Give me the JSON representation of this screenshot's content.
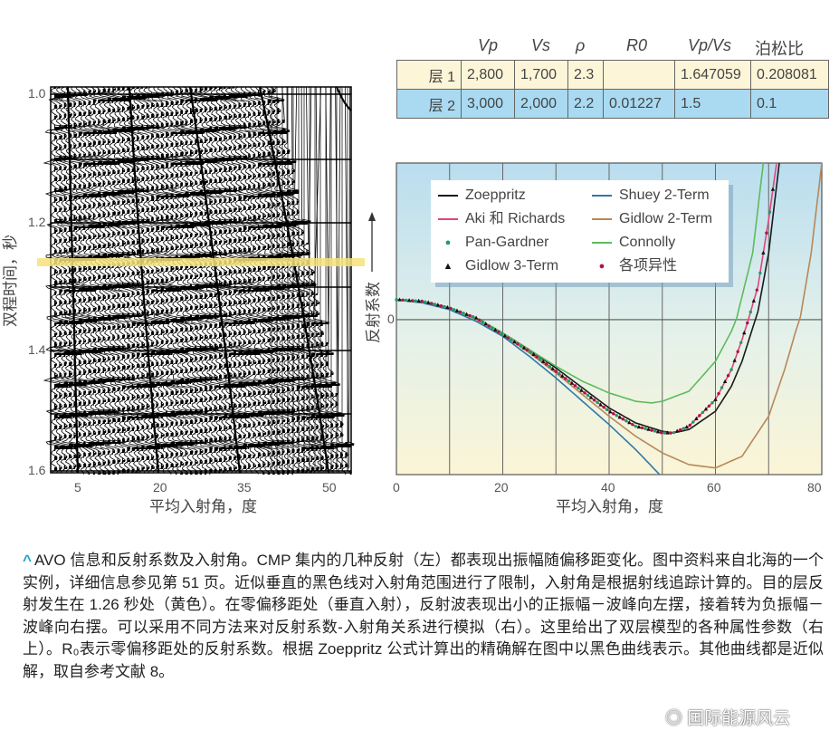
{
  "table": {
    "headers": [
      "Vp",
      "Vs",
      "ρ",
      "R0",
      "Vp/Vs",
      "泊松比"
    ],
    "rows": [
      {
        "label": "层 1",
        "cells": [
          "2,800",
          "1,700",
          "2.3",
          "",
          "1.647059",
          "0.208081"
        ]
      },
      {
        "label": "层 2",
        "cells": [
          "3,000",
          "2,000",
          "2.2",
          "0.01227",
          "1.5",
          "0.1"
        ]
      }
    ],
    "row_colors": [
      "#fdf5d8",
      "#a9daf2"
    ]
  },
  "seismic": {
    "ylabel": "双程时间，秒",
    "xlabel": "平均入射角，度",
    "yticks": [
      "1.0",
      "1.2",
      "1.4",
      "1.6"
    ],
    "xticks": [
      "5",
      "20",
      "35",
      "50"
    ],
    "target_time": 1.26,
    "highlight_color": "#f7e27a"
  },
  "chart_data": {
    "type": "line",
    "xlabel": "平均入射角，度",
    "ylabel": "反射系数",
    "xlim": [
      0,
      80
    ],
    "ylim": [
      -0.093,
      0.094
    ],
    "xticks": [
      "0",
      "20",
      "40",
      "60",
      "80"
    ],
    "ytick_zero": "0",
    "grid": true,
    "legend_position": "top-left",
    "series": [
      {
        "name": "Zoeppritz",
        "color": "#1a1a1a",
        "style": "line",
        "x": [
          0,
          5,
          10,
          15,
          20,
          25,
          30,
          35,
          40,
          45,
          50,
          52,
          55,
          60,
          63,
          65,
          67,
          68,
          70,
          72
        ],
        "y": [
          0.012,
          0.011,
          0.007,
          0.001,
          -0.008,
          -0.018,
          -0.029,
          -0.041,
          -0.053,
          -0.062,
          -0.067,
          -0.068,
          -0.066,
          -0.055,
          -0.04,
          -0.025,
          -0.005,
          0.005,
          0.04,
          0.094
        ]
      },
      {
        "name": "Shuey 2-Term",
        "color": "#2f78a8",
        "style": "line",
        "x": [
          0,
          5,
          10,
          15,
          20,
          25,
          30,
          35,
          40,
          45,
          49.5
        ],
        "y": [
          0.012,
          0.01,
          0.006,
          -0.001,
          -0.01,
          -0.022,
          -0.035,
          -0.049,
          -0.063,
          -0.078,
          -0.093
        ]
      },
      {
        "name": "Aki 和 Richards",
        "color": "#e0457b",
        "style": "line",
        "x": [
          0,
          5,
          10,
          15,
          20,
          25,
          30,
          35,
          40,
          45,
          50,
          52,
          55,
          60,
          63,
          65,
          66,
          68,
          70,
          71.5
        ],
        "y": [
          0.012,
          0.011,
          0.007,
          0.001,
          -0.009,
          -0.019,
          -0.031,
          -0.043,
          -0.055,
          -0.064,
          -0.068,
          -0.068,
          -0.064,
          -0.048,
          -0.03,
          -0.012,
          -0.002,
          0.02,
          0.06,
          0.094
        ]
      },
      {
        "name": "Gidlow 2-Term",
        "color": "#b8875a",
        "style": "line",
        "x": [
          0,
          5,
          10,
          15,
          20,
          25,
          30,
          35,
          40,
          45,
          50,
          55,
          60,
          65,
          70,
          73,
          75,
          76,
          78,
          80
        ],
        "y": [
          0.012,
          0.011,
          0.007,
          0.0,
          -0.009,
          -0.02,
          -0.032,
          -0.045,
          -0.058,
          -0.07,
          -0.08,
          -0.087,
          -0.089,
          -0.082,
          -0.058,
          -0.03,
          -0.008,
          0.002,
          0.04,
          0.094
        ]
      },
      {
        "name": "Pan-Gardner",
        "color": "#1e9a6a",
        "style": "dots",
        "follows": "Aki 和 Richards"
      },
      {
        "name": "Connolly",
        "color": "#5dbb5d",
        "style": "line",
        "x": [
          0,
          5,
          10,
          15,
          20,
          25,
          30,
          35,
          40,
          45,
          48,
          50,
          55,
          60,
          63,
          64,
          67,
          69
        ],
        "y": [
          0.012,
          0.011,
          0.007,
          0.001,
          -0.008,
          -0.018,
          -0.028,
          -0.037,
          -0.044,
          -0.049,
          -0.05,
          -0.049,
          -0.043,
          -0.025,
          -0.007,
          0.001,
          0.04,
          0.094
        ]
      },
      {
        "name": "Gidlow 3-Term",
        "color": "#111111",
        "style": "triangles",
        "follows": "Aki 和 Richards"
      },
      {
        "name": "各项异性",
        "color": "#b0124a",
        "style": "dots",
        "follows": "Aki 和 Richards"
      }
    ]
  },
  "caption": {
    "marker": "^",
    "text": "AVO 信息和反射系数及入射角。CMP 集内的几种反射（左）都表现出振幅随偏移距变化。图中资料来自北海的一个实例，详细信息参见第 51 页。近似垂直的黑色线对入射角范围进行了限制，入射角是根据射线追踪计算的。目的层反射发生在 1.26 秒处（黄色）。在零偏移距处（垂直入射），反射波表现出小的正振幅－波峰向左摆，接着转为负振幅－波峰向右摆。可以采用不同方法来对反射系数-入射角关系进行模拟（右）。这里给出了双层模型的各种属性参数（右上）。R₀表示零偏移距处的反射系数。根据 Zoeppritz 公式计算出的精确解在图中以黑色曲线表示。其他曲线都是近似解，取自参考文献 8。"
  },
  "watermark": "国际能源风云"
}
